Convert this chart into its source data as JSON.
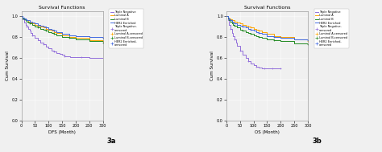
{
  "title": "Survival Functions",
  "panel_a_label": "3a",
  "panel_b_label": "3b",
  "xlabel_a": "DFS (Month)",
  "xlabel_b": "OS (Month)",
  "ylabel": "Cum Survival",
  "xlim": [
    0,
    300
  ],
  "ylim": [
    0.0,
    1.05
  ],
  "xticks": [
    0,
    50,
    100,
    150,
    200,
    250,
    300
  ],
  "yticks": [
    0.0,
    0.2,
    0.4,
    0.6,
    0.8,
    1.0
  ],
  "legend_labels": [
    "Triple Negative",
    "Luminal A",
    "Luminal B",
    "HER2 Enriched",
    "Triple Negative-\ncensored",
    "Luminal A-censored",
    "Luminal B-censored",
    "HER2 Enriched-\ncensored"
  ],
  "colors": {
    "triple_neg": "#9370DB",
    "luminal_a": "#FFA500",
    "luminal_b": "#228B22",
    "her2": "#4169E1"
  },
  "dfs_curves": {
    "triple_neg": {
      "x": [
        0,
        5,
        10,
        15,
        20,
        25,
        30,
        35,
        40,
        50,
        60,
        70,
        80,
        90,
        100,
        110,
        120,
        130,
        140,
        150,
        160,
        170,
        180,
        200,
        220,
        250,
        280,
        300
      ],
      "y": [
        1.0,
        0.97,
        0.94,
        0.92,
        0.9,
        0.88,
        0.86,
        0.84,
        0.82,
        0.79,
        0.77,
        0.75,
        0.73,
        0.71,
        0.69,
        0.67,
        0.66,
        0.65,
        0.64,
        0.63,
        0.62,
        0.62,
        0.61,
        0.61,
        0.61,
        0.6,
        0.6,
        0.6
      ]
    },
    "luminal_a": {
      "x": [
        0,
        5,
        10,
        15,
        20,
        25,
        30,
        40,
        50,
        60,
        70,
        80,
        90,
        100,
        110,
        120,
        130,
        150,
        175,
        200,
        250,
        300
      ],
      "y": [
        1.0,
        0.99,
        0.98,
        0.97,
        0.96,
        0.95,
        0.94,
        0.93,
        0.92,
        0.91,
        0.9,
        0.89,
        0.88,
        0.87,
        0.86,
        0.85,
        0.84,
        0.82,
        0.8,
        0.79,
        0.77,
        0.76
      ]
    },
    "luminal_b": {
      "x": [
        0,
        5,
        10,
        15,
        20,
        25,
        30,
        40,
        50,
        60,
        70,
        80,
        90,
        100,
        110,
        120,
        130,
        150,
        175,
        200,
        250,
        300
      ],
      "y": [
        1.0,
        0.98,
        0.97,
        0.96,
        0.95,
        0.94,
        0.93,
        0.92,
        0.9,
        0.89,
        0.88,
        0.87,
        0.86,
        0.85,
        0.84,
        0.83,
        0.82,
        0.8,
        0.79,
        0.78,
        0.76,
        0.75
      ]
    },
    "her2": {
      "x": [
        0,
        5,
        10,
        15,
        20,
        25,
        30,
        40,
        50,
        60,
        70,
        80,
        90,
        100,
        110,
        120,
        130,
        150,
        175,
        200,
        250,
        300
      ],
      "y": [
        1.0,
        0.99,
        0.98,
        0.97,
        0.96,
        0.96,
        0.95,
        0.94,
        0.93,
        0.92,
        0.91,
        0.9,
        0.89,
        0.88,
        0.87,
        0.86,
        0.85,
        0.83,
        0.82,
        0.81,
        0.8,
        0.79
      ]
    }
  },
  "os_curves": {
    "triple_neg": {
      "x": [
        0,
        5,
        10,
        15,
        20,
        25,
        30,
        35,
        40,
        50,
        60,
        70,
        80,
        90,
        100,
        110,
        120,
        130,
        140,
        150,
        160,
        170,
        180,
        190,
        200
      ],
      "y": [
        1.0,
        0.96,
        0.92,
        0.88,
        0.84,
        0.81,
        0.78,
        0.75,
        0.72,
        0.67,
        0.63,
        0.6,
        0.57,
        0.55,
        0.53,
        0.52,
        0.51,
        0.5,
        0.5,
        0.5,
        0.5,
        0.5,
        0.5,
        0.5,
        0.5
      ]
    },
    "luminal_a": {
      "x": [
        0,
        5,
        10,
        15,
        20,
        25,
        30,
        40,
        50,
        60,
        70,
        80,
        90,
        100,
        110,
        120,
        130,
        150,
        175,
        200,
        250,
        300
      ],
      "y": [
        1.0,
        0.99,
        0.98,
        0.97,
        0.96,
        0.96,
        0.95,
        0.94,
        0.93,
        0.92,
        0.91,
        0.9,
        0.89,
        0.88,
        0.87,
        0.86,
        0.85,
        0.83,
        0.81,
        0.8,
        0.78,
        0.76
      ]
    },
    "luminal_b": {
      "x": [
        0,
        5,
        10,
        15,
        20,
        25,
        30,
        40,
        50,
        60,
        70,
        80,
        90,
        100,
        110,
        120,
        130,
        150,
        175,
        200,
        250,
        300
      ],
      "y": [
        1.0,
        0.98,
        0.96,
        0.95,
        0.93,
        0.92,
        0.91,
        0.89,
        0.87,
        0.86,
        0.85,
        0.84,
        0.83,
        0.82,
        0.81,
        0.8,
        0.79,
        0.78,
        0.77,
        0.76,
        0.74,
        0.73
      ]
    },
    "her2": {
      "x": [
        0,
        5,
        10,
        15,
        20,
        25,
        30,
        40,
        50,
        60,
        70,
        80,
        90,
        100,
        110,
        120,
        130,
        150,
        175,
        200,
        250,
        300
      ],
      "y": [
        1.0,
        0.99,
        0.97,
        0.96,
        0.95,
        0.94,
        0.93,
        0.92,
        0.91,
        0.9,
        0.89,
        0.88,
        0.87,
        0.86,
        0.85,
        0.84,
        0.83,
        0.81,
        0.8,
        0.79,
        0.78,
        0.77
      ]
    }
  },
  "bg_color": "#f0f0f0",
  "plot_bg": "#f0f0f0"
}
